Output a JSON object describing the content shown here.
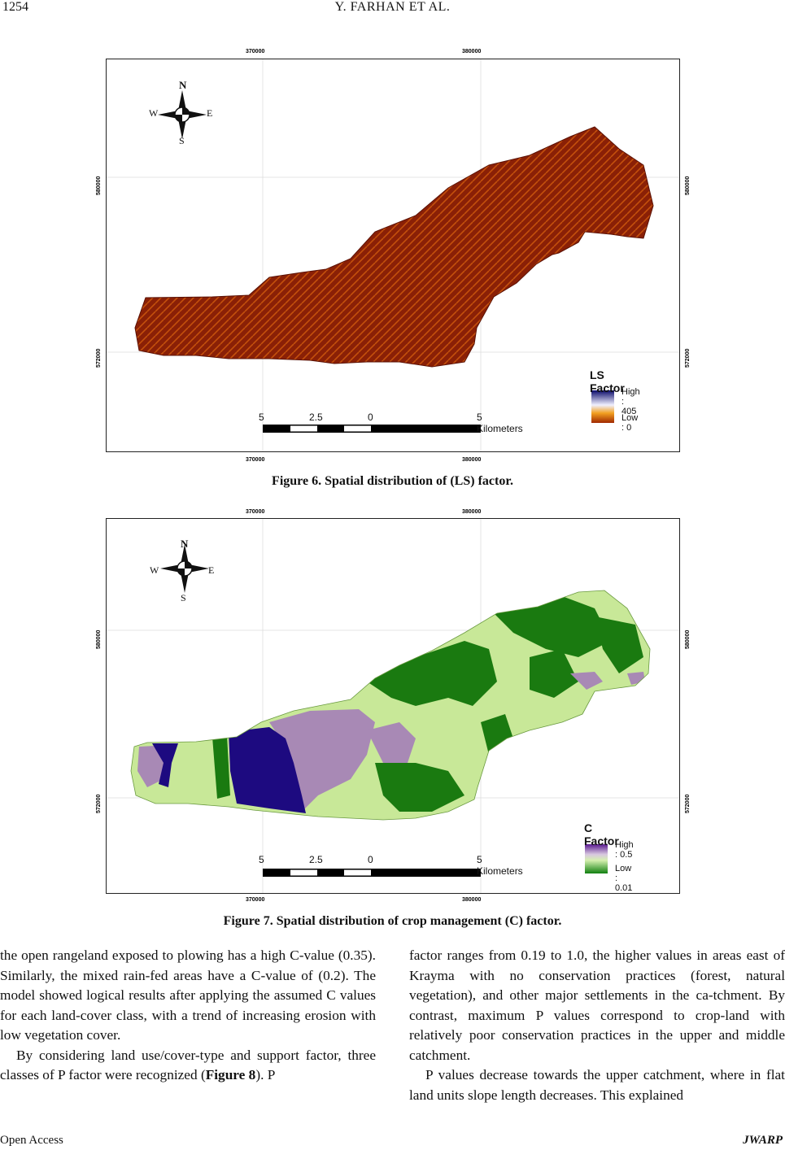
{
  "header": {
    "page_number": "1254",
    "running_title": "Y. FARHAN    ET    AL."
  },
  "figure6": {
    "coords": {
      "x_left": "370000",
      "x_right": "380000",
      "y_top": "580000",
      "y_bottom": "572000"
    },
    "compass": {
      "n": "N",
      "s": "S",
      "e": "E",
      "w": "W"
    },
    "legend": {
      "title": "LS Factor",
      "high": "High : 405",
      "low": "Low : 0"
    },
    "scale": {
      "l0": "5",
      "l1": "2.5",
      "l2": "0",
      "l3": "5 Kilometers"
    },
    "caption": "Figure 6. Spatial distribution of (LS) factor."
  },
  "figure7": {
    "coords": {
      "x_left": "370000",
      "x_right": "380000",
      "y_top": "580000",
      "y_bottom": "572000"
    },
    "compass": {
      "n": "N",
      "s": "S",
      "e": "E",
      "w": "W"
    },
    "legend": {
      "title": "C Factor",
      "high": "High : 0.5",
      "low": "Low : 0.01"
    },
    "scale": {
      "l0": "5",
      "l1": "2.5",
      "l2": "0",
      "l3": "5 Kilometers"
    },
    "caption": "Figure 7. Spatial distribution of crop management (C) factor."
  },
  "body": {
    "left_p1": "the open rangeland exposed to plowing has a high C-value (0.35). Similarly, the mixed rain-fed areas have a C-value of (0.2). The model showed logical results after applying the assumed C values for each land-cover class, with a trend of increasing erosion with low vegetation cover.",
    "left_p2_a": "By considering land use/cover-type and support factor, three classes of P factor were recognized (",
    "left_p2_ref": "Figure 8",
    "left_p2_b": "). P",
    "right_p1": "factor ranges from 0.19 to 1.0, the higher values in areas east of Krayma with no conservation practices (forest, natural vegetation), and other major settlements in the ca-tchment. By contrast, maximum P values correspond to crop-land with relatively poor conservation practices in the upper and middle catchment.",
    "right_p2": "P values decrease towards the upper catchment, where in flat land units slope length decreases. This explained"
  },
  "footer": {
    "left": "Open  Access",
    "right": "JWARP"
  },
  "colors": {
    "ls_dark": "#7a1a05",
    "ls_mid": "#b33a08",
    "ls_light": "#e8801e",
    "c_light": "#c8e898",
    "c_dark": "#1a7a10",
    "c_purple": "#a889b5",
    "c_navy": "#1d0a80"
  }
}
